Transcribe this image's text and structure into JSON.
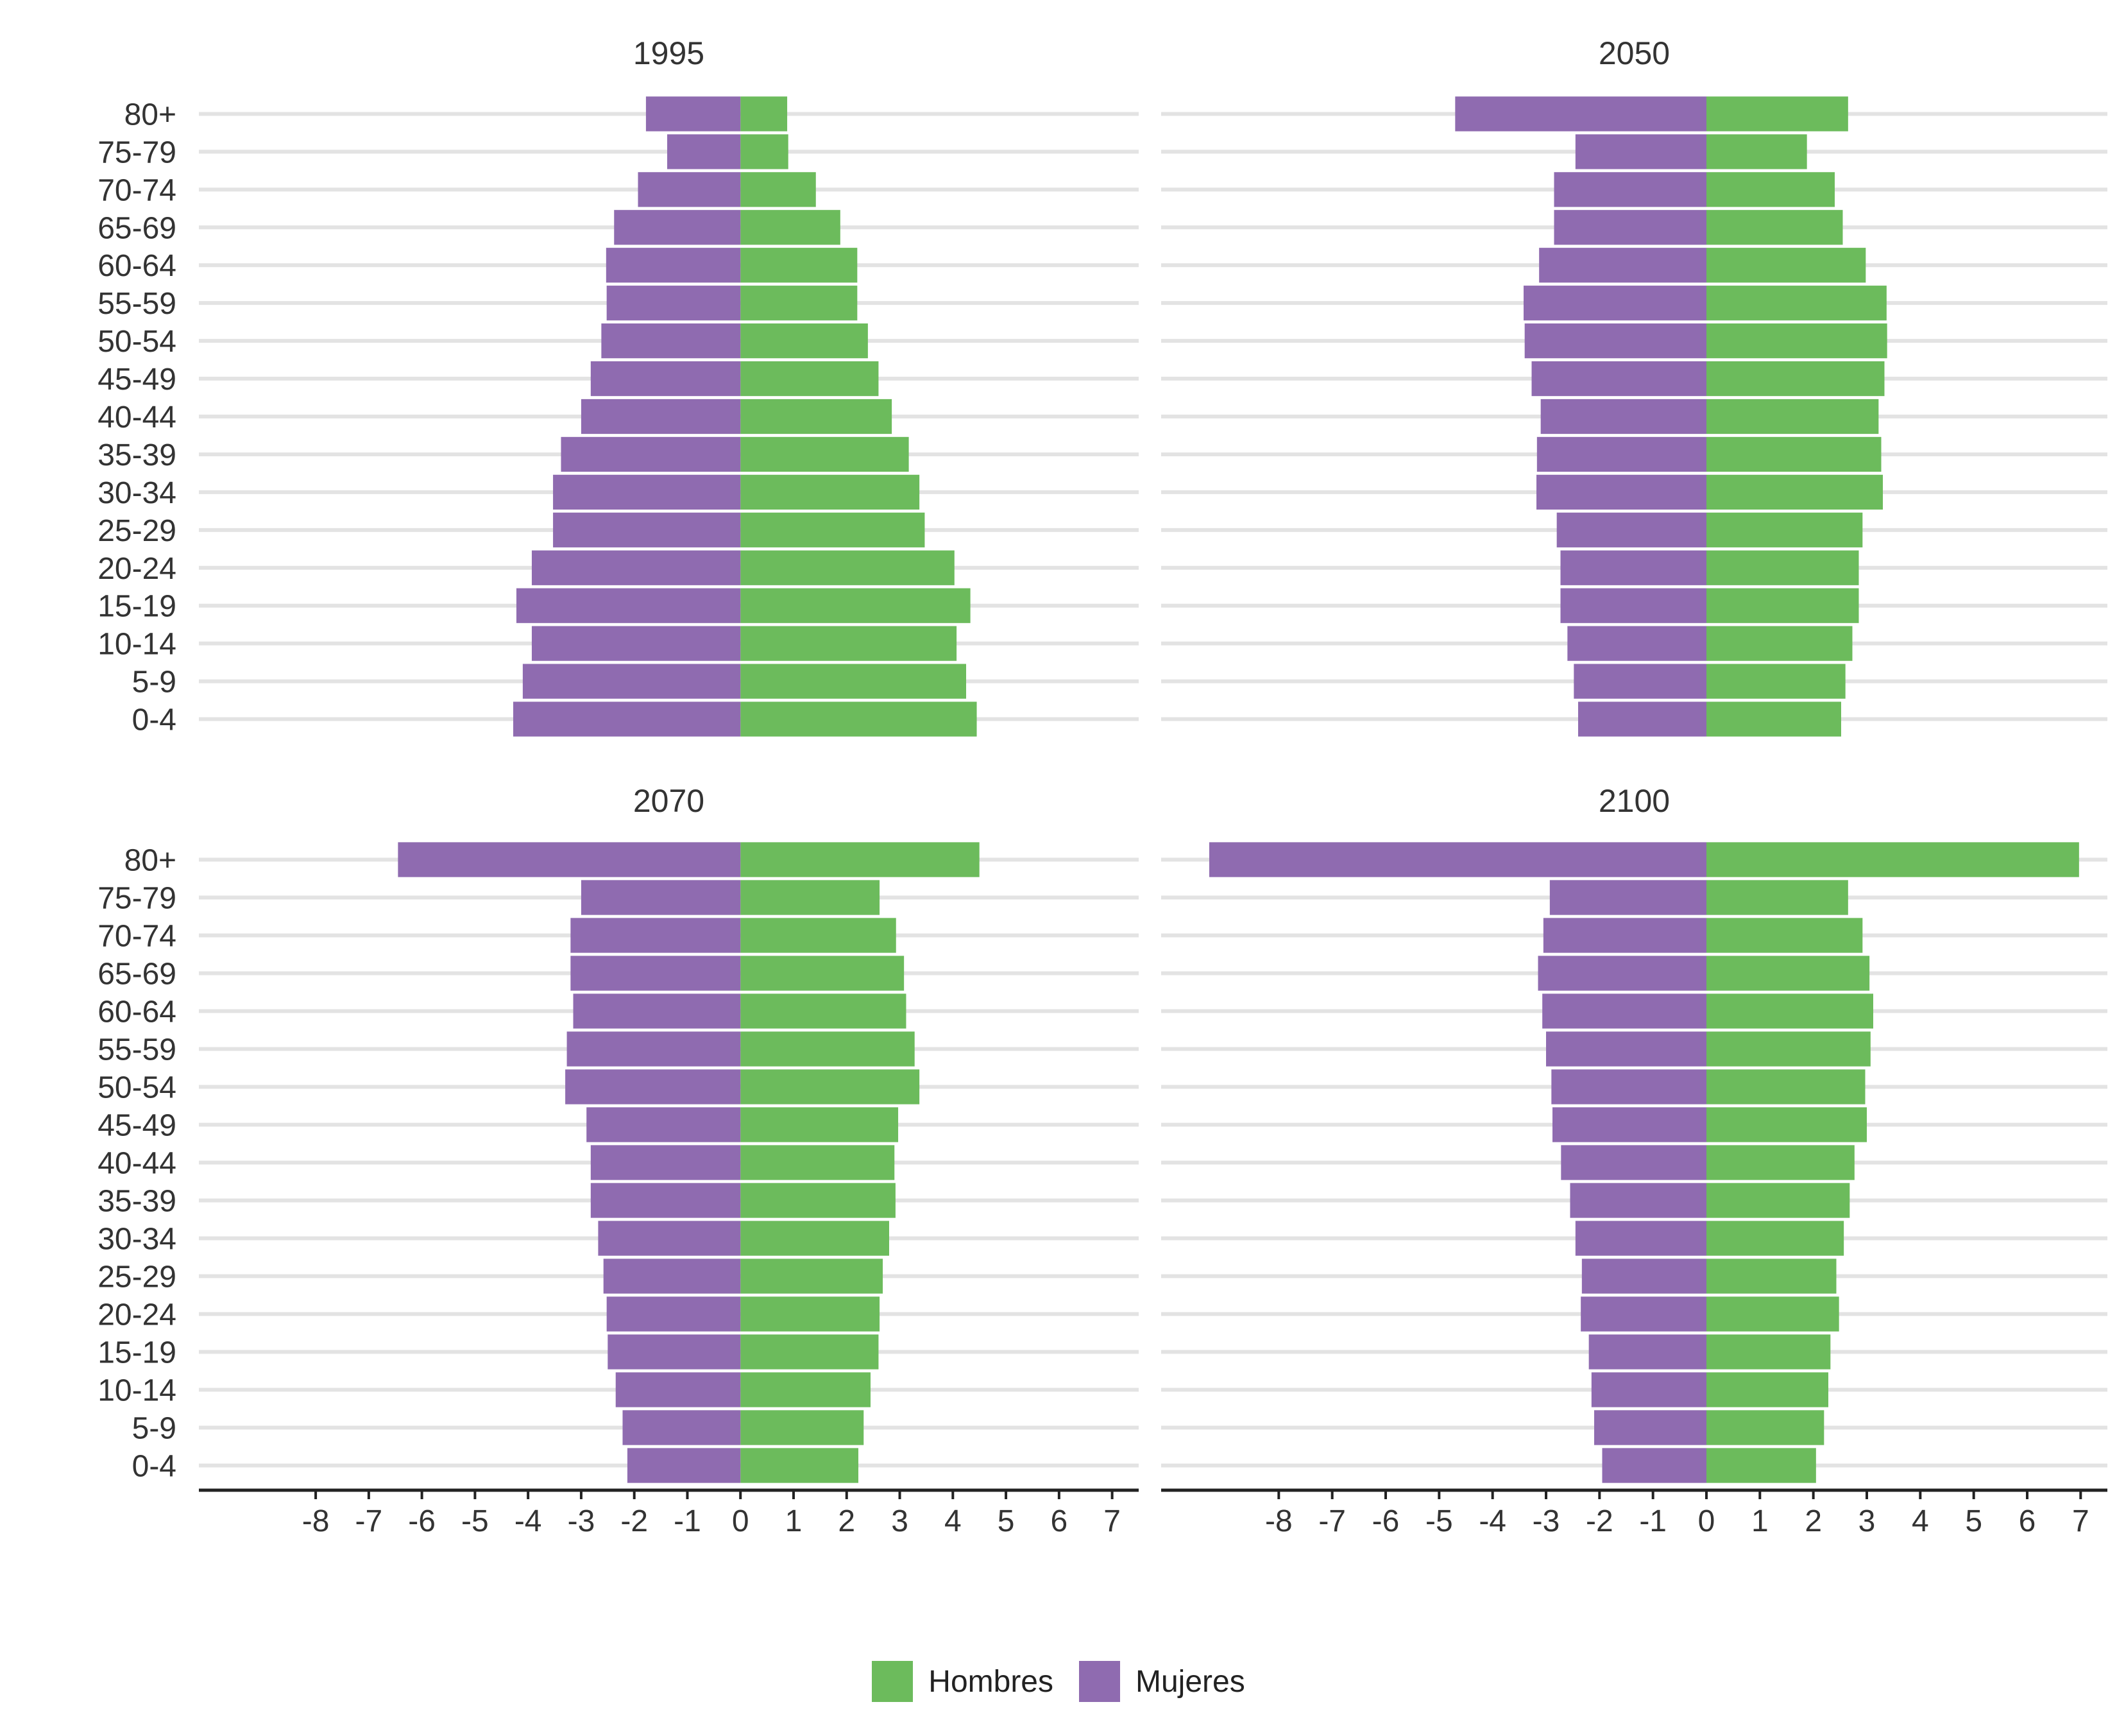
{
  "chart_data": {
    "type": "bar",
    "subtype": "population-pyramid",
    "age_groups": [
      "0-4",
      "5-9",
      "10-14",
      "15-19",
      "20-24",
      "25-29",
      "30-34",
      "35-39",
      "40-44",
      "45-49",
      "50-54",
      "55-59",
      "60-64",
      "65-69",
      "70-74",
      "75-79",
      "80+"
    ],
    "x_ticks": [
      "-8",
      "-7",
      "-6",
      "-5",
      "-4",
      "-3",
      "-2",
      "-1",
      "0",
      "1",
      "2",
      "3",
      "4",
      "5",
      "6",
      "7"
    ],
    "xlim": [
      -10.2,
      7.5
    ],
    "series_names": {
      "male": "Hombres",
      "female": "Mujeres"
    },
    "colors": {
      "male": "#6cbb5c",
      "female": "#8f6bb0"
    },
    "legend_position": "bottom-center",
    "panels": [
      {
        "title": "1995",
        "male": [
          4.45,
          4.25,
          4.07,
          4.33,
          4.03,
          3.47,
          3.37,
          3.17,
          2.85,
          2.6,
          2.4,
          2.2,
          2.2,
          1.88,
          1.42,
          0.9,
          0.88
        ],
        "female": [
          -4.28,
          -4.1,
          -3.93,
          -4.22,
          -3.93,
          -3.53,
          -3.53,
          -3.38,
          -3.0,
          -2.82,
          -2.62,
          -2.52,
          -2.53,
          -2.38,
          -1.93,
          -1.38,
          -1.78
        ]
      },
      {
        "title": "2050",
        "male": [
          2.52,
          2.6,
          2.73,
          2.85,
          2.85,
          2.92,
          3.3,
          3.27,
          3.22,
          3.33,
          3.38,
          3.37,
          2.98,
          2.55,
          2.4,
          1.88,
          2.65
        ],
        "female": [
          -2.4,
          -2.48,
          -2.6,
          -2.73,
          -2.73,
          -2.8,
          -3.18,
          -3.17,
          -3.1,
          -3.27,
          -3.4,
          -3.42,
          -3.13,
          -2.85,
          -2.85,
          -2.45,
          -4.7
        ]
      },
      {
        "title": "2070",
        "male": [
          2.22,
          2.32,
          2.45,
          2.6,
          2.62,
          2.68,
          2.8,
          2.92,
          2.9,
          2.97,
          3.37,
          3.28,
          3.12,
          3.08,
          2.93,
          2.62,
          4.5
        ],
        "female": [
          -2.13,
          -2.22,
          -2.35,
          -2.5,
          -2.52,
          -2.58,
          -2.68,
          -2.82,
          -2.82,
          -2.9,
          -3.3,
          -3.27,
          -3.15,
          -3.2,
          -3.2,
          -3.0,
          -6.45
        ]
      },
      {
        "title": "2100",
        "male": [
          2.05,
          2.2,
          2.28,
          2.32,
          2.48,
          2.43,
          2.57,
          2.68,
          2.77,
          3.0,
          2.97,
          3.07,
          3.12,
          3.05,
          2.92,
          2.65,
          6.97
        ],
        "female": [
          -1.95,
          -2.1,
          -2.15,
          -2.2,
          -2.35,
          -2.33,
          -2.45,
          -2.55,
          -2.72,
          -2.88,
          -2.9,
          -3.0,
          -3.07,
          -3.15,
          -3.05,
          -2.93,
          -9.3
        ]
      }
    ]
  }
}
